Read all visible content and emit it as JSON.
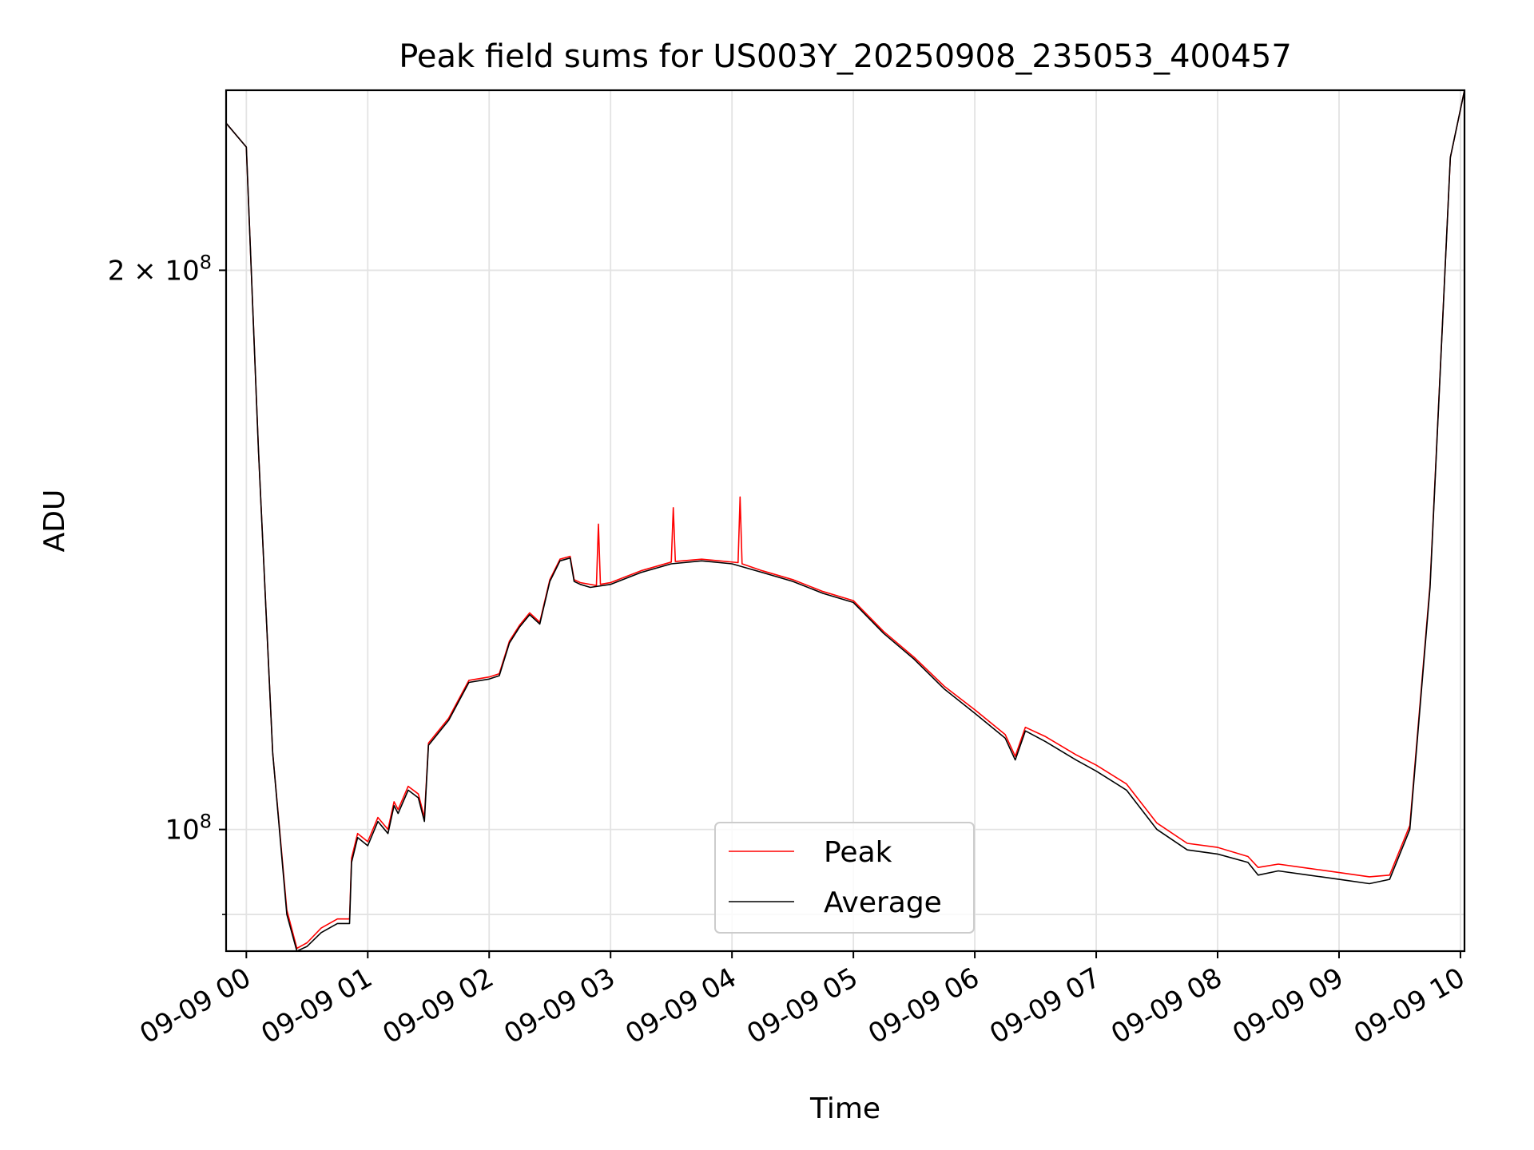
{
  "chart_data": {
    "type": "line",
    "title": "Peak field sums for US003Y_20250908_235053_400457",
    "xlabel": "Time",
    "ylabel": "ADU",
    "yscale": "log",
    "grid": true,
    "legend_placement": "lower-center",
    "xlim": [
      "2025-09-08 23:50",
      "2025-09-09 10:02"
    ],
    "ylim": [
      86000000,
      250000000
    ],
    "x_ticks": [
      {
        "value": "2025-09-09 00:00",
        "label": "09-09 00"
      },
      {
        "value": "2025-09-09 01:00",
        "label": "09-09 01"
      },
      {
        "value": "2025-09-09 02:00",
        "label": "09-09 02"
      },
      {
        "value": "2025-09-09 03:00",
        "label": "09-09 03"
      },
      {
        "value": "2025-09-09 04:00",
        "label": "09-09 04"
      },
      {
        "value": "2025-09-09 05:00",
        "label": "09-09 05"
      },
      {
        "value": "2025-09-09 06:00",
        "label": "09-09 06"
      },
      {
        "value": "2025-09-09 07:00",
        "label": "09-09 07"
      },
      {
        "value": "2025-09-09 08:00",
        "label": "09-09 08"
      },
      {
        "value": "2025-09-09 09:00",
        "label": "09-09 09"
      },
      {
        "value": "2025-09-09 10:00",
        "label": "09-09 10"
      }
    ],
    "y_major_ticks": [
      {
        "value": 100000000,
        "mantissa": "",
        "exponent": "8"
      },
      {
        "value": 200000000,
        "mantissa": "2 × ",
        "exponent": "8"
      }
    ],
    "y_minor_ticks": [
      90000000
    ],
    "series": [
      {
        "name": "Average",
        "color": "#000000",
        "points": [
          [
            "2025-09-08 23:50",
            240000000
          ],
          [
            "2025-09-09 00:00",
            233000000
          ],
          [
            "2025-09-09 00:06",
            160000000
          ],
          [
            "2025-09-09 00:13",
            110000000
          ],
          [
            "2025-09-09 00:20",
            90000000
          ],
          [
            "2025-09-09 00:25",
            86000000
          ],
          [
            "2025-09-09 00:30",
            86500000
          ],
          [
            "2025-09-09 00:37",
            88000000
          ],
          [
            "2025-09-09 00:45",
            89000000
          ],
          [
            "2025-09-09 00:51",
            89000000
          ],
          [
            "2025-09-09 00:52",
            96000000
          ],
          [
            "2025-09-09 00:55",
            99000000
          ],
          [
            "2025-09-09 01:00",
            98000000
          ],
          [
            "2025-09-09 01:05",
            101000000
          ],
          [
            "2025-09-09 01:10",
            99500000
          ],
          [
            "2025-09-09 01:13",
            103000000
          ],
          [
            "2025-09-09 01:15",
            102000000
          ],
          [
            "2025-09-09 01:20",
            105000000
          ],
          [
            "2025-09-09 01:25",
            104000000
          ],
          [
            "2025-09-09 01:28",
            101000000
          ],
          [
            "2025-09-09 01:30",
            111000000
          ],
          [
            "2025-09-09 01:40",
            114500000
          ],
          [
            "2025-09-09 01:50",
            120000000
          ],
          [
            "2025-09-09 02:00",
            120500000
          ],
          [
            "2025-09-09 02:05",
            121000000
          ],
          [
            "2025-09-09 02:10",
            126000000
          ],
          [
            "2025-09-09 02:15",
            128500000
          ],
          [
            "2025-09-09 02:20",
            130500000
          ],
          [
            "2025-09-09 02:25",
            129000000
          ],
          [
            "2025-09-09 02:30",
            136000000
          ],
          [
            "2025-09-09 02:35",
            139500000
          ],
          [
            "2025-09-09 02:40",
            140000000
          ],
          [
            "2025-09-09 02:42",
            136000000
          ],
          [
            "2025-09-09 02:45",
            135500000
          ],
          [
            "2025-09-09 02:50",
            135000000
          ],
          [
            "2025-09-09 03:00",
            135500000
          ],
          [
            "2025-09-09 03:15",
            137500000
          ],
          [
            "2025-09-09 03:30",
            139000000
          ],
          [
            "2025-09-09 03:45",
            139500000
          ],
          [
            "2025-09-09 04:00",
            139000000
          ],
          [
            "2025-09-09 04:15",
            137500000
          ],
          [
            "2025-09-09 04:30",
            136000000
          ],
          [
            "2025-09-09 04:45",
            134000000
          ],
          [
            "2025-09-09 05:00",
            132500000
          ],
          [
            "2025-09-09 05:15",
            127500000
          ],
          [
            "2025-09-09 05:30",
            123500000
          ],
          [
            "2025-09-09 05:45",
            119000000
          ],
          [
            "2025-09-09 06:00",
            115500000
          ],
          [
            "2025-09-09 06:15",
            112000000
          ],
          [
            "2025-09-09 06:20",
            109000000
          ],
          [
            "2025-09-09 06:25",
            113000000
          ],
          [
            "2025-09-09 06:35",
            111500000
          ],
          [
            "2025-09-09 06:50",
            109000000
          ],
          [
            "2025-09-09 07:00",
            107500000
          ],
          [
            "2025-09-09 07:15",
            105000000
          ],
          [
            "2025-09-09 07:30",
            100000000
          ],
          [
            "2025-09-09 07:45",
            97500000
          ],
          [
            "2025-09-09 08:00",
            97000000
          ],
          [
            "2025-09-09 08:15",
            96000000
          ],
          [
            "2025-09-09 08:20",
            94500000
          ],
          [
            "2025-09-09 08:30",
            95000000
          ],
          [
            "2025-09-09 08:45",
            94500000
          ],
          [
            "2025-09-09 09:00",
            94000000
          ],
          [
            "2025-09-09 09:15",
            93500000
          ],
          [
            "2025-09-09 09:25",
            94000000
          ],
          [
            "2025-09-09 09:35",
            100000000
          ],
          [
            "2025-09-09 09:45",
            135000000
          ],
          [
            "2025-09-09 09:55",
            230000000
          ],
          [
            "2025-09-09 10:02",
            250000000
          ]
        ]
      },
      {
        "name": "Peak",
        "color": "#ff0000",
        "points": [
          [
            "2025-09-08 23:50",
            240000000
          ],
          [
            "2025-09-09 00:00",
            233000000
          ],
          [
            "2025-09-09 00:06",
            160000000
          ],
          [
            "2025-09-09 00:13",
            110000000
          ],
          [
            "2025-09-09 00:20",
            90500000
          ],
          [
            "2025-09-09 00:25",
            86300000
          ],
          [
            "2025-09-09 00:30",
            86900000
          ],
          [
            "2025-09-09 00:37",
            88500000
          ],
          [
            "2025-09-09 00:45",
            89500000
          ],
          [
            "2025-09-09 00:51",
            89500000
          ],
          [
            "2025-09-09 00:52",
            96500000
          ],
          [
            "2025-09-09 00:55",
            99500000
          ],
          [
            "2025-09-09 01:00",
            98500000
          ],
          [
            "2025-09-09 01:05",
            101500000
          ],
          [
            "2025-09-09 01:10",
            100000000
          ],
          [
            "2025-09-09 01:13",
            103500000
          ],
          [
            "2025-09-09 01:15",
            102500000
          ],
          [
            "2025-09-09 01:20",
            105500000
          ],
          [
            "2025-09-09 01:25",
            104500000
          ],
          [
            "2025-09-09 01:28",
            101500000
          ],
          [
            "2025-09-09 01:30",
            111300000
          ],
          [
            "2025-09-09 01:40",
            114800000
          ],
          [
            "2025-09-09 01:50",
            120300000
          ],
          [
            "2025-09-09 02:00",
            120800000
          ],
          [
            "2025-09-09 02:05",
            121300000
          ],
          [
            "2025-09-09 02:10",
            126300000
          ],
          [
            "2025-09-09 02:15",
            128800000
          ],
          [
            "2025-09-09 02:20",
            130800000
          ],
          [
            "2025-09-09 02:25",
            129300000
          ],
          [
            "2025-09-09 02:30",
            136300000
          ],
          [
            "2025-09-09 02:35",
            139800000
          ],
          [
            "2025-09-09 02:40",
            140300000
          ],
          [
            "2025-09-09 02:42",
            136300000
          ],
          [
            "2025-09-09 02:45",
            135800000
          ],
          [
            "2025-09-09 02:53",
            135300000
          ],
          [
            "2025-09-09 02:54",
            146000000
          ],
          [
            "2025-09-09 02:55",
            135500000
          ],
          [
            "2025-09-09 03:00",
            135800000
          ],
          [
            "2025-09-09 03:15",
            137800000
          ],
          [
            "2025-09-09 03:30",
            139300000
          ],
          [
            "2025-09-09 03:31",
            149000000
          ],
          [
            "2025-09-09 03:32",
            139400000
          ],
          [
            "2025-09-09 03:45",
            139800000
          ],
          [
            "2025-09-09 04:03",
            139200000
          ],
          [
            "2025-09-09 04:04",
            151000000
          ],
          [
            "2025-09-09 04:05",
            139000000
          ],
          [
            "2025-09-09 04:15",
            137800000
          ],
          [
            "2025-09-09 04:30",
            136300000
          ],
          [
            "2025-09-09 04:45",
            134300000
          ],
          [
            "2025-09-09 05:00",
            132800000
          ],
          [
            "2025-09-09 05:15",
            127800000
          ],
          [
            "2025-09-09 05:30",
            123800000
          ],
          [
            "2025-09-09 05:45",
            119400000
          ],
          [
            "2025-09-09 06:00",
            116000000
          ],
          [
            "2025-09-09 06:15",
            112500000
          ],
          [
            "2025-09-09 06:20",
            109500000
          ],
          [
            "2025-09-09 06:25",
            113500000
          ],
          [
            "2025-09-09 06:35",
            112200000
          ],
          [
            "2025-09-09 06:50",
            109700000
          ],
          [
            "2025-09-09 07:00",
            108300000
          ],
          [
            "2025-09-09 07:15",
            105800000
          ],
          [
            "2025-09-09 07:30",
            100800000
          ],
          [
            "2025-09-09 07:45",
            98300000
          ],
          [
            "2025-09-09 08:00",
            97800000
          ],
          [
            "2025-09-09 08:15",
            96700000
          ],
          [
            "2025-09-09 08:20",
            95400000
          ],
          [
            "2025-09-09 08:30",
            95800000
          ],
          [
            "2025-09-09 08:45",
            95300000
          ],
          [
            "2025-09-09 09:00",
            94800000
          ],
          [
            "2025-09-09 09:15",
            94300000
          ],
          [
            "2025-09-09 09:25",
            94500000
          ],
          [
            "2025-09-09 09:35",
            100500000
          ],
          [
            "2025-09-09 09:45",
            135500000
          ],
          [
            "2025-09-09 09:55",
            230000000
          ],
          [
            "2025-09-09 10:02",
            250000000
          ]
        ]
      }
    ],
    "legend": [
      {
        "label": "Peak",
        "color": "#ff0000"
      },
      {
        "label": "Average",
        "color": "#000000"
      }
    ]
  }
}
